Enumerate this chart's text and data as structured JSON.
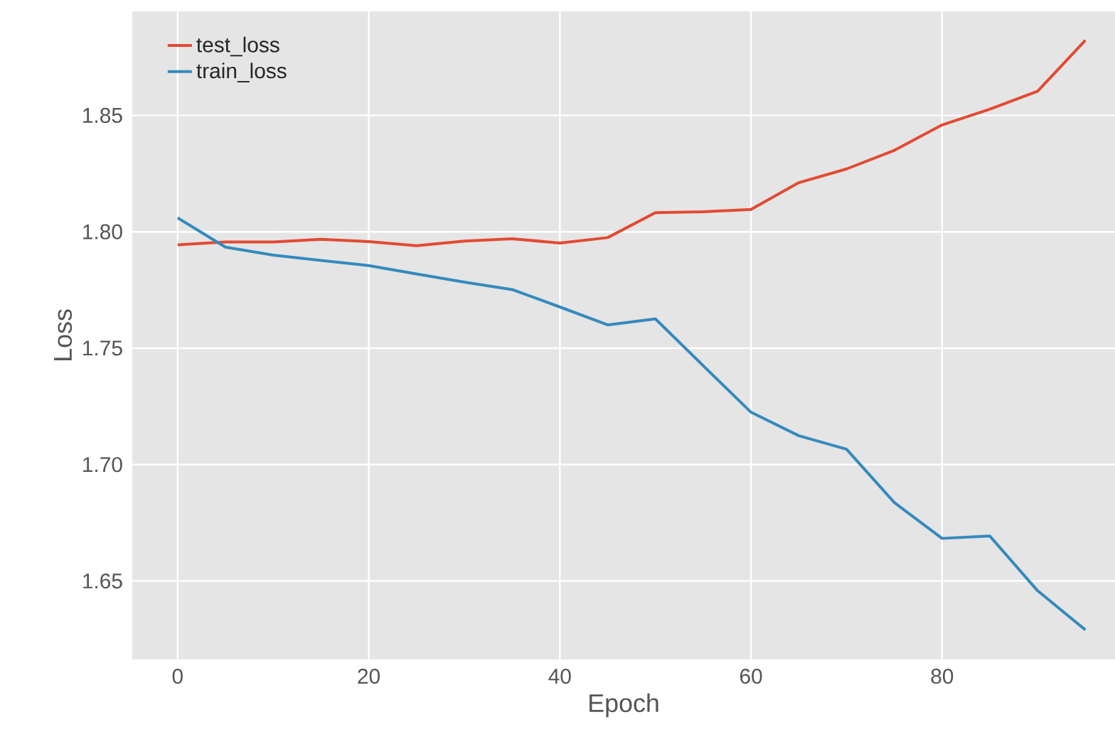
{
  "chart_data": {
    "type": "line",
    "xlabel": "Epoch",
    "ylabel": "Loss",
    "x": [
      0,
      5,
      10,
      15,
      20,
      25,
      30,
      35,
      40,
      45,
      50,
      55,
      60,
      65,
      70,
      75,
      80,
      85,
      90,
      95
    ],
    "series": [
      {
        "name": "test_loss",
        "color": "#e24a33",
        "values": [
          1.7944,
          1.7956,
          1.7956,
          1.7968,
          1.7958,
          1.794,
          1.796,
          1.797,
          1.7952,
          1.7975,
          1.8082,
          1.8086,
          1.8096,
          1.8211,
          1.827,
          1.835,
          1.8459,
          1.8527,
          1.8604,
          1.8823
        ]
      },
      {
        "name": "train_loss",
        "color": "#348abd",
        "values": [
          1.806,
          1.7934,
          1.79,
          1.7877,
          1.7855,
          1.7819,
          1.7784,
          1.7752,
          1.7677,
          1.76,
          1.7626,
          1.7425,
          1.7225,
          1.7124,
          1.7066,
          1.6837,
          1.6683,
          1.6693,
          1.6458,
          1.629
        ]
      }
    ],
    "xlim": [
      -4.75,
      98.1
    ],
    "ylim": [
      1.6163,
      1.8947
    ],
    "xticks": [
      0,
      20,
      40,
      60,
      80
    ],
    "yticks": [
      1.65,
      {
        "value": 1.7,
        "label": "1.70"
      },
      1.75,
      {
        "value": 1.8,
        "label": "1.80"
      },
      1.85
    ],
    "grid": true,
    "legend": "top left",
    "marker": "none",
    "line_style": "solid"
  }
}
